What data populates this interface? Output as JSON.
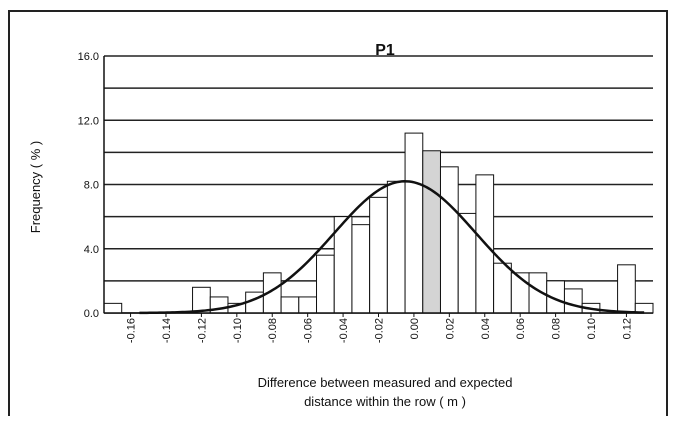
{
  "chart_data": {
    "type": "bar",
    "title": "P1",
    "ylabel": "Frequency ( % )",
    "xlabel_line1": "Difference between measured and expected",
    "xlabel_line2": "distance within the row ( m )",
    "ylim": [
      0,
      16
    ],
    "xlim": [
      -0.175,
      0.135
    ],
    "y_ticks": [
      "0.0",
      "4.0",
      "8.0",
      "12.0",
      "16.0"
    ],
    "x_ticks": [
      "-0.16",
      "-0.14",
      "-0.12",
      "-0.10",
      "-0.08",
      "-0.06",
      "-0.04",
      "-0.02",
      "0.00",
      "0.02",
      "0.04",
      "0.06",
      "0.08",
      "0.10",
      "0.12"
    ],
    "grid": true,
    "bin_width": 0.01,
    "bins": [
      {
        "center": -0.17,
        "value": 0.6
      },
      {
        "center": -0.16,
        "value": 0.0
      },
      {
        "center": -0.15,
        "value": 0.0
      },
      {
        "center": -0.14,
        "value": 0.0
      },
      {
        "center": -0.13,
        "value": 0.0
      },
      {
        "center": -0.12,
        "value": 1.6
      },
      {
        "center": -0.11,
        "value": 1.0
      },
      {
        "center": -0.1,
        "value": 0.6
      },
      {
        "center": -0.09,
        "value": 1.3
      },
      {
        "center": -0.08,
        "value": 2.5
      },
      {
        "center": -0.07,
        "value": 1.0
      },
      {
        "center": -0.06,
        "value": 1.0
      },
      {
        "center": -0.05,
        "value": 3.6
      },
      {
        "center": -0.04,
        "value": 6.0
      },
      {
        "center": -0.03,
        "value": 5.5
      },
      {
        "center": -0.02,
        "value": 7.2
      },
      {
        "center": -0.01,
        "value": 8.2
      },
      {
        "center": 0.0,
        "value": 11.2
      },
      {
        "center": 0.01,
        "value": 10.1
      },
      {
        "center": 0.02,
        "value": 9.1
      },
      {
        "center": 0.03,
        "value": 6.2
      },
      {
        "center": 0.04,
        "value": 8.6
      },
      {
        "center": 0.05,
        "value": 3.1
      },
      {
        "center": 0.06,
        "value": 2.5
      },
      {
        "center": 0.07,
        "value": 2.5
      },
      {
        "center": 0.08,
        "value": 2.0
      },
      {
        "center": 0.09,
        "value": 1.5
      },
      {
        "center": 0.1,
        "value": 0.6
      },
      {
        "center": 0.11,
        "value": 0.0
      },
      {
        "center": 0.12,
        "value": 3.0
      },
      {
        "center": 0.13,
        "value": 0.6
      }
    ],
    "highlight_bin_center": 0.01,
    "highlight_color": "#d4d4d4",
    "bar_color": "#ffffff",
    "normal_curve": {
      "mean": -0.005,
      "sd": 0.04,
      "peak": 8.2
    }
  }
}
